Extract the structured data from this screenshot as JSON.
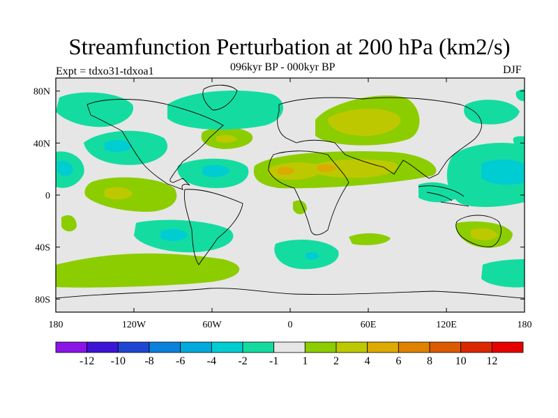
{
  "chart_data": {
    "type": "heatmap",
    "title": "Streamfunction Perturbation at 200 hPa (km2/s)",
    "subtitle": "096kyr BP - 000kyr BP",
    "left_label": "Expt = tdxo31-tdxoa1",
    "right_label": "DJF",
    "projection": "cylindrical equidistant world map",
    "x_axis": {
      "range": [
        -180,
        180
      ],
      "ticks": [
        -180,
        -120,
        -60,
        0,
        60,
        120,
        180
      ],
      "tick_labels": [
        "180",
        "120W",
        "60W",
        "0",
        "60E",
        "120E",
        "180"
      ]
    },
    "y_axis": {
      "range": [
        -90,
        90
      ],
      "ticks": [
        80,
        40,
        0,
        -40,
        -80
      ],
      "tick_labels": [
        "80N",
        "40N",
        "0",
        "40S",
        "80S"
      ]
    },
    "colorbar": {
      "colors": [
        "#8b14e6",
        "#3c14d6",
        "#1e46d2",
        "#0a82dc",
        "#00aadc",
        "#00cdd2",
        "#14dca0",
        "#e6e6e6",
        "#8ccd00",
        "#bec800",
        "#dcaa00",
        "#e08200",
        "#dc5a00",
        "#dc2800",
        "#e60000"
      ],
      "labels": [
        "-12",
        "-10",
        "-8",
        "-6",
        "-4",
        "-2",
        "-1",
        "1",
        "2",
        "4",
        "6",
        "8",
        "10",
        "12"
      ]
    },
    "anomaly_regions": [
      {
        "name": "subarctic-north-pacific",
        "lon": -160,
        "lat": 72,
        "value": -1.5
      },
      {
        "name": "arctic-north-america",
        "lon": -70,
        "lat": 72,
        "value": -1.5
      },
      {
        "name": "eastern-north-pacific",
        "lon": -125,
        "lat": 40,
        "value": -2.5
      },
      {
        "name": "north-atlantic-subtropics",
        "lon": -55,
        "lat": 18,
        "value": -2.5
      },
      {
        "name": "north-atlantic-midlatitude",
        "lon": -45,
        "lat": 38,
        "value": 1.5
      },
      {
        "name": "eurasia-north",
        "lon": 60,
        "lat": 52,
        "value": 2.5
      },
      {
        "name": "eurasia-subtropics",
        "lon": 50,
        "lat": 20,
        "value": 2.5
      },
      {
        "name": "western-pacific-tropics",
        "lon": 160,
        "lat": 18,
        "value": -3.5
      },
      {
        "name": "eastern-pacific-south",
        "lon": -140,
        "lat": -5,
        "value": 1.5
      },
      {
        "name": "south-pacific",
        "lon": -90,
        "lat": -30,
        "value": -2.5
      },
      {
        "name": "southern-ocean-atlantic",
        "lon": -40,
        "lat": -55,
        "value": 1.5
      },
      {
        "name": "south-atlantic",
        "lon": 15,
        "lat": -45,
        "value": -2.5
      },
      {
        "name": "australia",
        "lon": 145,
        "lat": -30,
        "value": 2.5
      },
      {
        "name": "southern-ocean-indian",
        "lon": 150,
        "lat": -60,
        "value": -1.5
      }
    ]
  }
}
